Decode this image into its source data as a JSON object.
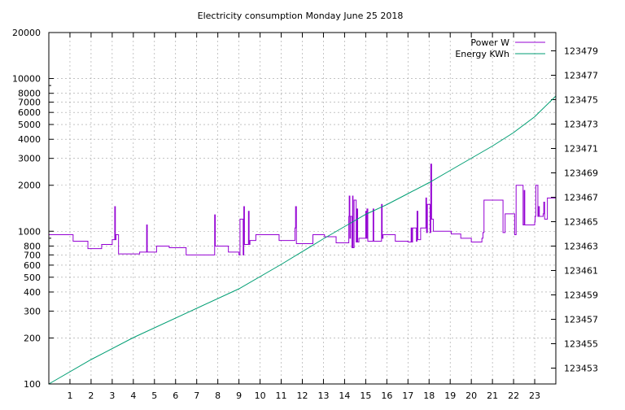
{
  "chart_data": {
    "type": "line",
    "title": "Electricity consumption Monday June 25 2018",
    "xlabel": "",
    "ylabel": "",
    "y2label": "",
    "grid": true,
    "legend_position": "top-right",
    "x_range": [
      0,
      24
    ],
    "x_ticks": [
      "1",
      "2",
      "3",
      "4",
      "5",
      "6",
      "7",
      "8",
      "9",
      "10",
      "11",
      "12",
      "13",
      "14",
      "15",
      "16",
      "17",
      "18",
      "19",
      "20",
      "21",
      "22",
      "23"
    ],
    "y_scale": "log",
    "y_range": [
      100,
      20000
    ],
    "y_ticks": [
      {
        "value": 100,
        "label": "100"
      },
      {
        "value": 200,
        "label": "200"
      },
      {
        "value": 300,
        "label": "300"
      },
      {
        "value": 400,
        "label": "400"
      },
      {
        "value": 500,
        "label": "500"
      },
      {
        "value": 600,
        "label": "600"
      },
      {
        "value": 700,
        "label": "700"
      },
      {
        "value": 800,
        "label": "800"
      },
      {
        "value": 1000,
        "label": "1000"
      },
      {
        "value": 2000,
        "label": "2000"
      },
      {
        "value": 3000,
        "label": "3000"
      },
      {
        "value": 4000,
        "label": "4000"
      },
      {
        "value": 5000,
        "label": "5000"
      },
      {
        "value": 6000,
        "label": "6000"
      },
      {
        "value": 7000,
        "label": "7000"
      },
      {
        "value": 8000,
        "label": "8000"
      },
      {
        "value": 10000,
        "label": "10000"
      },
      {
        "value": 20000,
        "label": "20000"
      }
    ],
    "y2_scale": "linear",
    "y2_range": [
      123451.7,
      123480.5
    ],
    "y2_ticks": [
      "123453",
      "123455",
      "123457",
      "123459",
      "123461",
      "123463",
      "123465",
      "123467",
      "123469",
      "123471",
      "123473",
      "123475",
      "123477",
      "123479"
    ],
    "series": [
      {
        "name": "Power W",
        "axis": "y",
        "color": "#9400d3",
        "step": true,
        "x": [
          0,
          1.15,
          1.85,
          2.5,
          3.0,
          3.12,
          3.15,
          3.18,
          3.3,
          3.35,
          4.3,
          4.6,
          4.63,
          4.66,
          5.1,
          5.7,
          6.5,
          7.85,
          7.88,
          7.9,
          8.5,
          9.0,
          9.05,
          9.2,
          9.23,
          9.26,
          9.45,
          9.48,
          9.52,
          9.8,
          10.9,
          11.65,
          11.68,
          11.72,
          11.8,
          12.5,
          13.05,
          13.6,
          14.2,
          14.22,
          14.25,
          14.28,
          14.35,
          14.38,
          14.4,
          14.45,
          14.55,
          14.58,
          14.62,
          14.68,
          14.8,
          15.0,
          15.03,
          15.06,
          15.1,
          15.35,
          15.38,
          15.42,
          15.75,
          15.78,
          15.82,
          16.4,
          17.0,
          17.15,
          17.18,
          17.22,
          17.4,
          17.43,
          17.47,
          17.6,
          17.85,
          17.88,
          17.92,
          18.05,
          18.08,
          18.12,
          18.2,
          19.05,
          19.5,
          20.0,
          20.5,
          20.55,
          20.6,
          21.5,
          21.55,
          21.6,
          22.05,
          22.08,
          22.12,
          22.45,
          22.5,
          22.53,
          22.6,
          23.0,
          23.02,
          23.05,
          23.15,
          23.18,
          23.22,
          23.4,
          23.43,
          23.47,
          23.6,
          24
        ],
        "values": [
          950,
          860,
          770,
          820,
          880,
          1450,
          880,
          950,
          710,
          710,
          730,
          730,
          1100,
          730,
          800,
          780,
          700,
          1280,
          800,
          800,
          730,
          700,
          1200,
          700,
          1450,
          820,
          1350,
          820,
          870,
          950,
          870,
          1050,
          1450,
          830,
          830,
          950,
          920,
          840,
          1250,
          1700,
          900,
          1250,
          780,
          1700,
          780,
          1600,
          850,
          1400,
          850,
          900,
          900,
          1350,
          900,
          1400,
          860,
          1400,
          860,
          860,
          1500,
          900,
          950,
          860,
          850,
          1050,
          850,
          1050,
          860,
          1350,
          880,
          1050,
          1650,
          980,
          1500,
          980,
          2750,
          1200,
          1000,
          960,
          900,
          850,
          900,
          980,
          1600,
          980,
          980,
          1300,
          950,
          950,
          2000,
          1100,
          1850,
          1100,
          1100,
          1150,
          1250,
          2000,
          1250,
          1450,
          1250,
          1300,
          1550,
          1200,
          1650,
          1650
        ]
      },
      {
        "name": "Energy KWh",
        "axis": "y2",
        "color": "#009e73",
        "step": false,
        "x": [
          0,
          2,
          4,
          7,
          9,
          11,
          13,
          14,
          15,
          16,
          17,
          18,
          19,
          20,
          21,
          22,
          23,
          24
        ],
        "values": [
          123451.7,
          123453.7,
          123455.5,
          123457.9,
          123459.5,
          123461.5,
          123463.6,
          123464.6,
          123465.6,
          123466.4,
          123467.3,
          123468.2,
          123469.2,
          123470.2,
          123471.2,
          123472.3,
          123473.6,
          123475.3
        ]
      }
    ]
  }
}
